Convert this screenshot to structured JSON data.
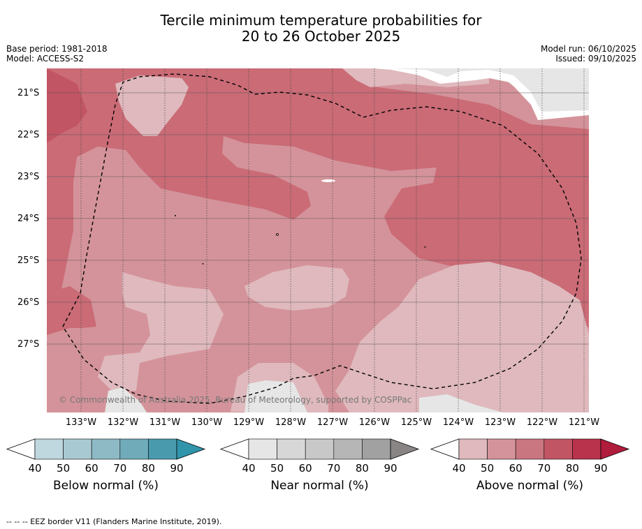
{
  "title": {
    "line1": "Tercile minimum temperature probabilities for",
    "line2": "20 to 26 October 2025"
  },
  "meta": {
    "base_period": "Base period: 1981-2018",
    "model": "Model: ACCESS-S2",
    "model_run": "Model run: 06/10/2025",
    "issued": "Issued: 09/10/2025"
  },
  "map": {
    "latitude_labels": [
      "21°S",
      "22°S",
      "23°S",
      "24°S",
      "25°S",
      "26°S",
      "27°S"
    ],
    "longitude_labels": [
      "133°W",
      "132°W",
      "131°W",
      "130°W",
      "129°W",
      "128°W",
      "127°W",
      "126°W",
      "125°W",
      "124°W",
      "123°W",
      "122°W",
      "121°W"
    ],
    "copyright": "© Commonwealth of Australia 2025, Bureau of Meteorology, supported by COSPPac",
    "colors": {
      "above_40": "#dfb9bd",
      "above_50": "#d4939a",
      "above_60": "#ca6b76",
      "above_70": "#c25564",
      "near_40": "#e6e6e6",
      "land": "#ffffff"
    }
  },
  "colorbars": [
    {
      "name": "below",
      "title": "Below normal (%)",
      "ticks": [
        "40",
        "50",
        "60",
        "70",
        "80",
        "90"
      ],
      "colors": [
        "#bfd7de",
        "#a8c9d1",
        "#8dbac5",
        "#70abb9",
        "#4a9aae",
        "#3095ab"
      ]
    },
    {
      "name": "near",
      "title": "Near normal (%)",
      "ticks": [
        "40",
        "50",
        "60",
        "70",
        "80",
        "90"
      ],
      "colors": [
        "#e6e6e6",
        "#d7d7d7",
        "#c8c8c8",
        "#b6b6b6",
        "#a1a1a1",
        "#8a8585"
      ]
    },
    {
      "name": "above",
      "title": "Above normal (%)",
      "ticks": [
        "40",
        "50",
        "60",
        "70",
        "80",
        "90"
      ],
      "colors": [
        "#dfb9bd",
        "#d4939a",
        "#ca7680",
        "#c25564",
        "#b8334b",
        "#b01c3c"
      ]
    }
  ],
  "footer": "--  --  -- EEZ border V11 (Flanders Marine Institute, 2019)."
}
